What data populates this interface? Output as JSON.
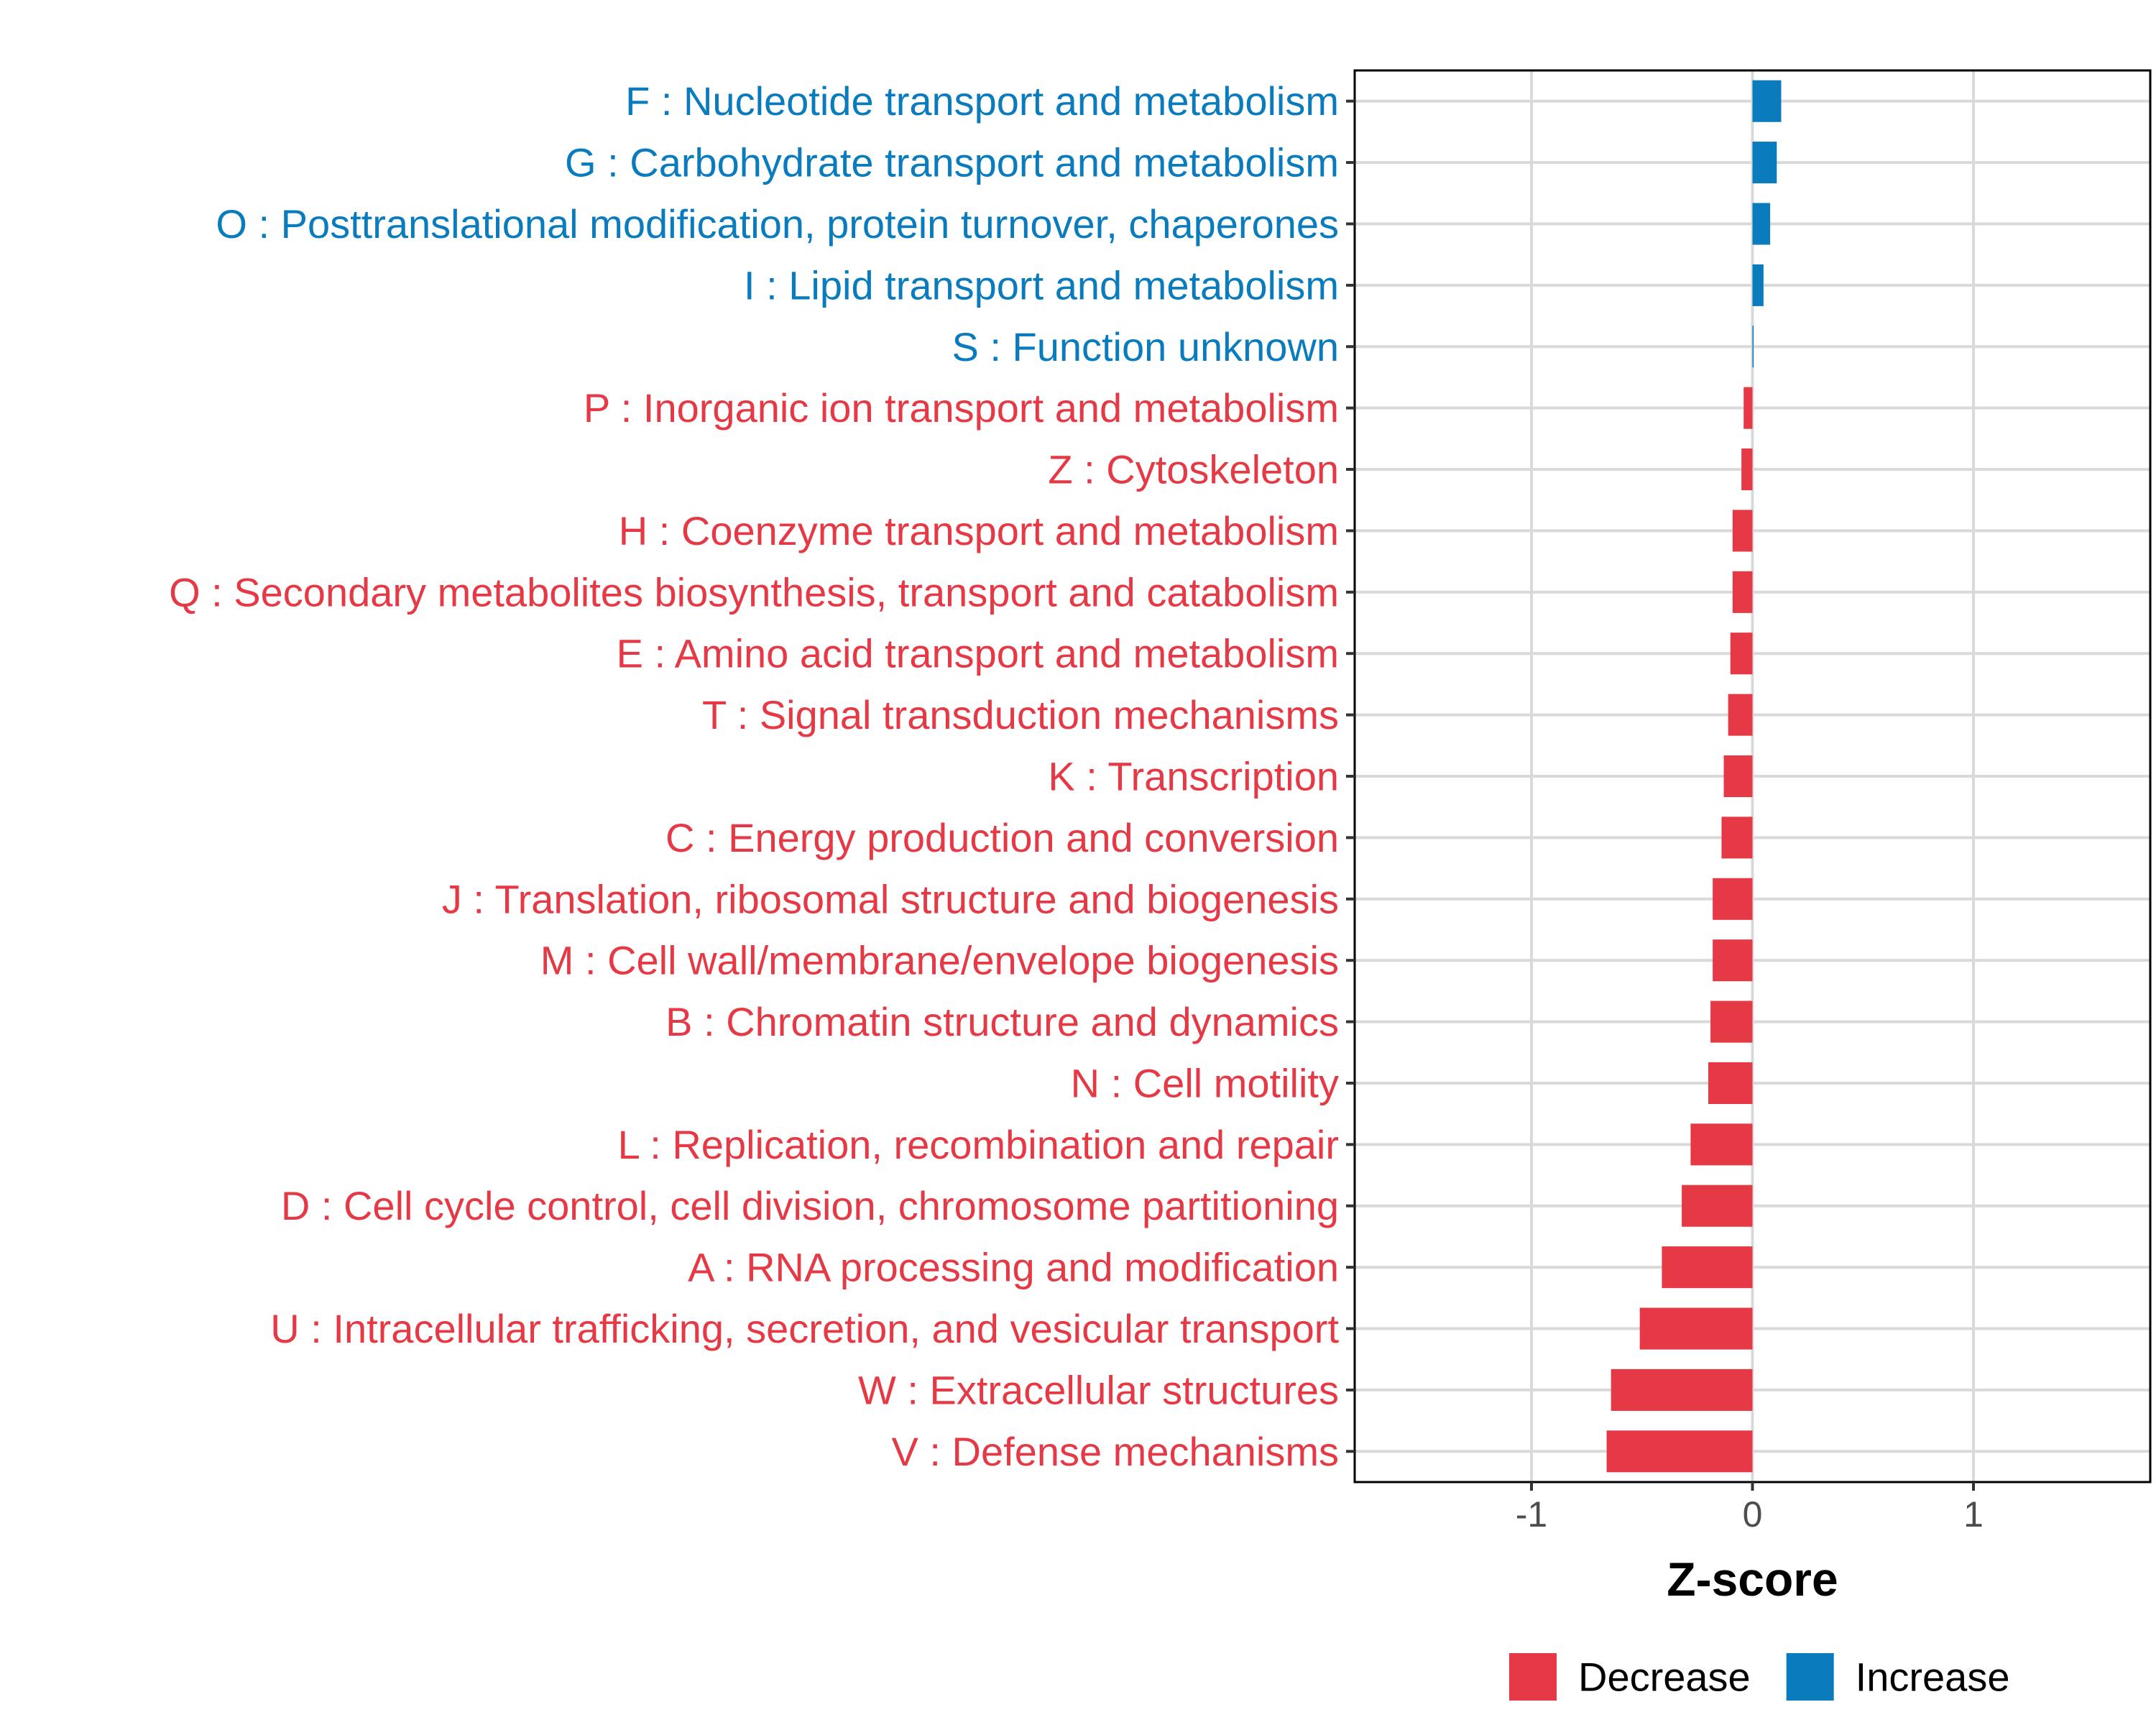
{
  "chart_data": {
    "type": "bar",
    "orientation": "horizontal",
    "xlabel": "Z-score",
    "ylabel": "",
    "xlim": [
      -1.8,
      1.8
    ],
    "xticks": [
      -1,
      0,
      1
    ],
    "xtick_labels": [
      "-1",
      "0",
      "1"
    ],
    "grid": true,
    "legend_position": "bottom",
    "legend": [
      {
        "name": "Decrease",
        "color": "#e63946"
      },
      {
        "name": "Increase",
        "color": "#0a7bbd"
      }
    ],
    "categories": [
      "F : Nucleotide transport and metabolism",
      "G : Carbohydrate transport and metabolism",
      "O : Posttranslational modification, protein turnover, chaperones",
      "I : Lipid transport and metabolism",
      "S : Function unknown",
      "P : Inorganic ion transport and metabolism",
      "Z : Cytoskeleton",
      "H : Coenzyme transport and metabolism",
      "Q : Secondary metabolites biosynthesis, transport and catabolism",
      "E : Amino acid transport and metabolism",
      "T : Signal transduction mechanisms",
      "K : Transcription",
      "C : Energy production and conversion",
      "J : Translation, ribosomal structure and biogenesis",
      "M : Cell wall/membrane/envelope biogenesis",
      "B : Chromatin structure and dynamics",
      "N : Cell motility",
      "L : Replication, recombination and repair",
      "D : Cell cycle control, cell division, chromosome partitioning",
      "A : RNA processing and modification",
      "U : Intracellular trafficking, secretion, and vesicular transport",
      "W : Extracellular structures",
      "V : Defense mechanisms"
    ],
    "values": [
      0.13,
      0.11,
      0.08,
      0.05,
      0.005,
      -0.04,
      -0.05,
      -0.09,
      -0.09,
      -0.1,
      -0.11,
      -0.13,
      -0.14,
      -0.18,
      -0.18,
      -0.19,
      -0.2,
      -0.28,
      -0.32,
      -0.41,
      -0.51,
      -0.64,
      -0.66
    ],
    "groups": [
      "Increase",
      "Increase",
      "Increase",
      "Increase",
      "Increase",
      "Decrease",
      "Decrease",
      "Decrease",
      "Decrease",
      "Decrease",
      "Decrease",
      "Decrease",
      "Decrease",
      "Decrease",
      "Decrease",
      "Decrease",
      "Decrease",
      "Decrease",
      "Decrease",
      "Decrease",
      "Decrease",
      "Decrease",
      "Decrease"
    ]
  }
}
